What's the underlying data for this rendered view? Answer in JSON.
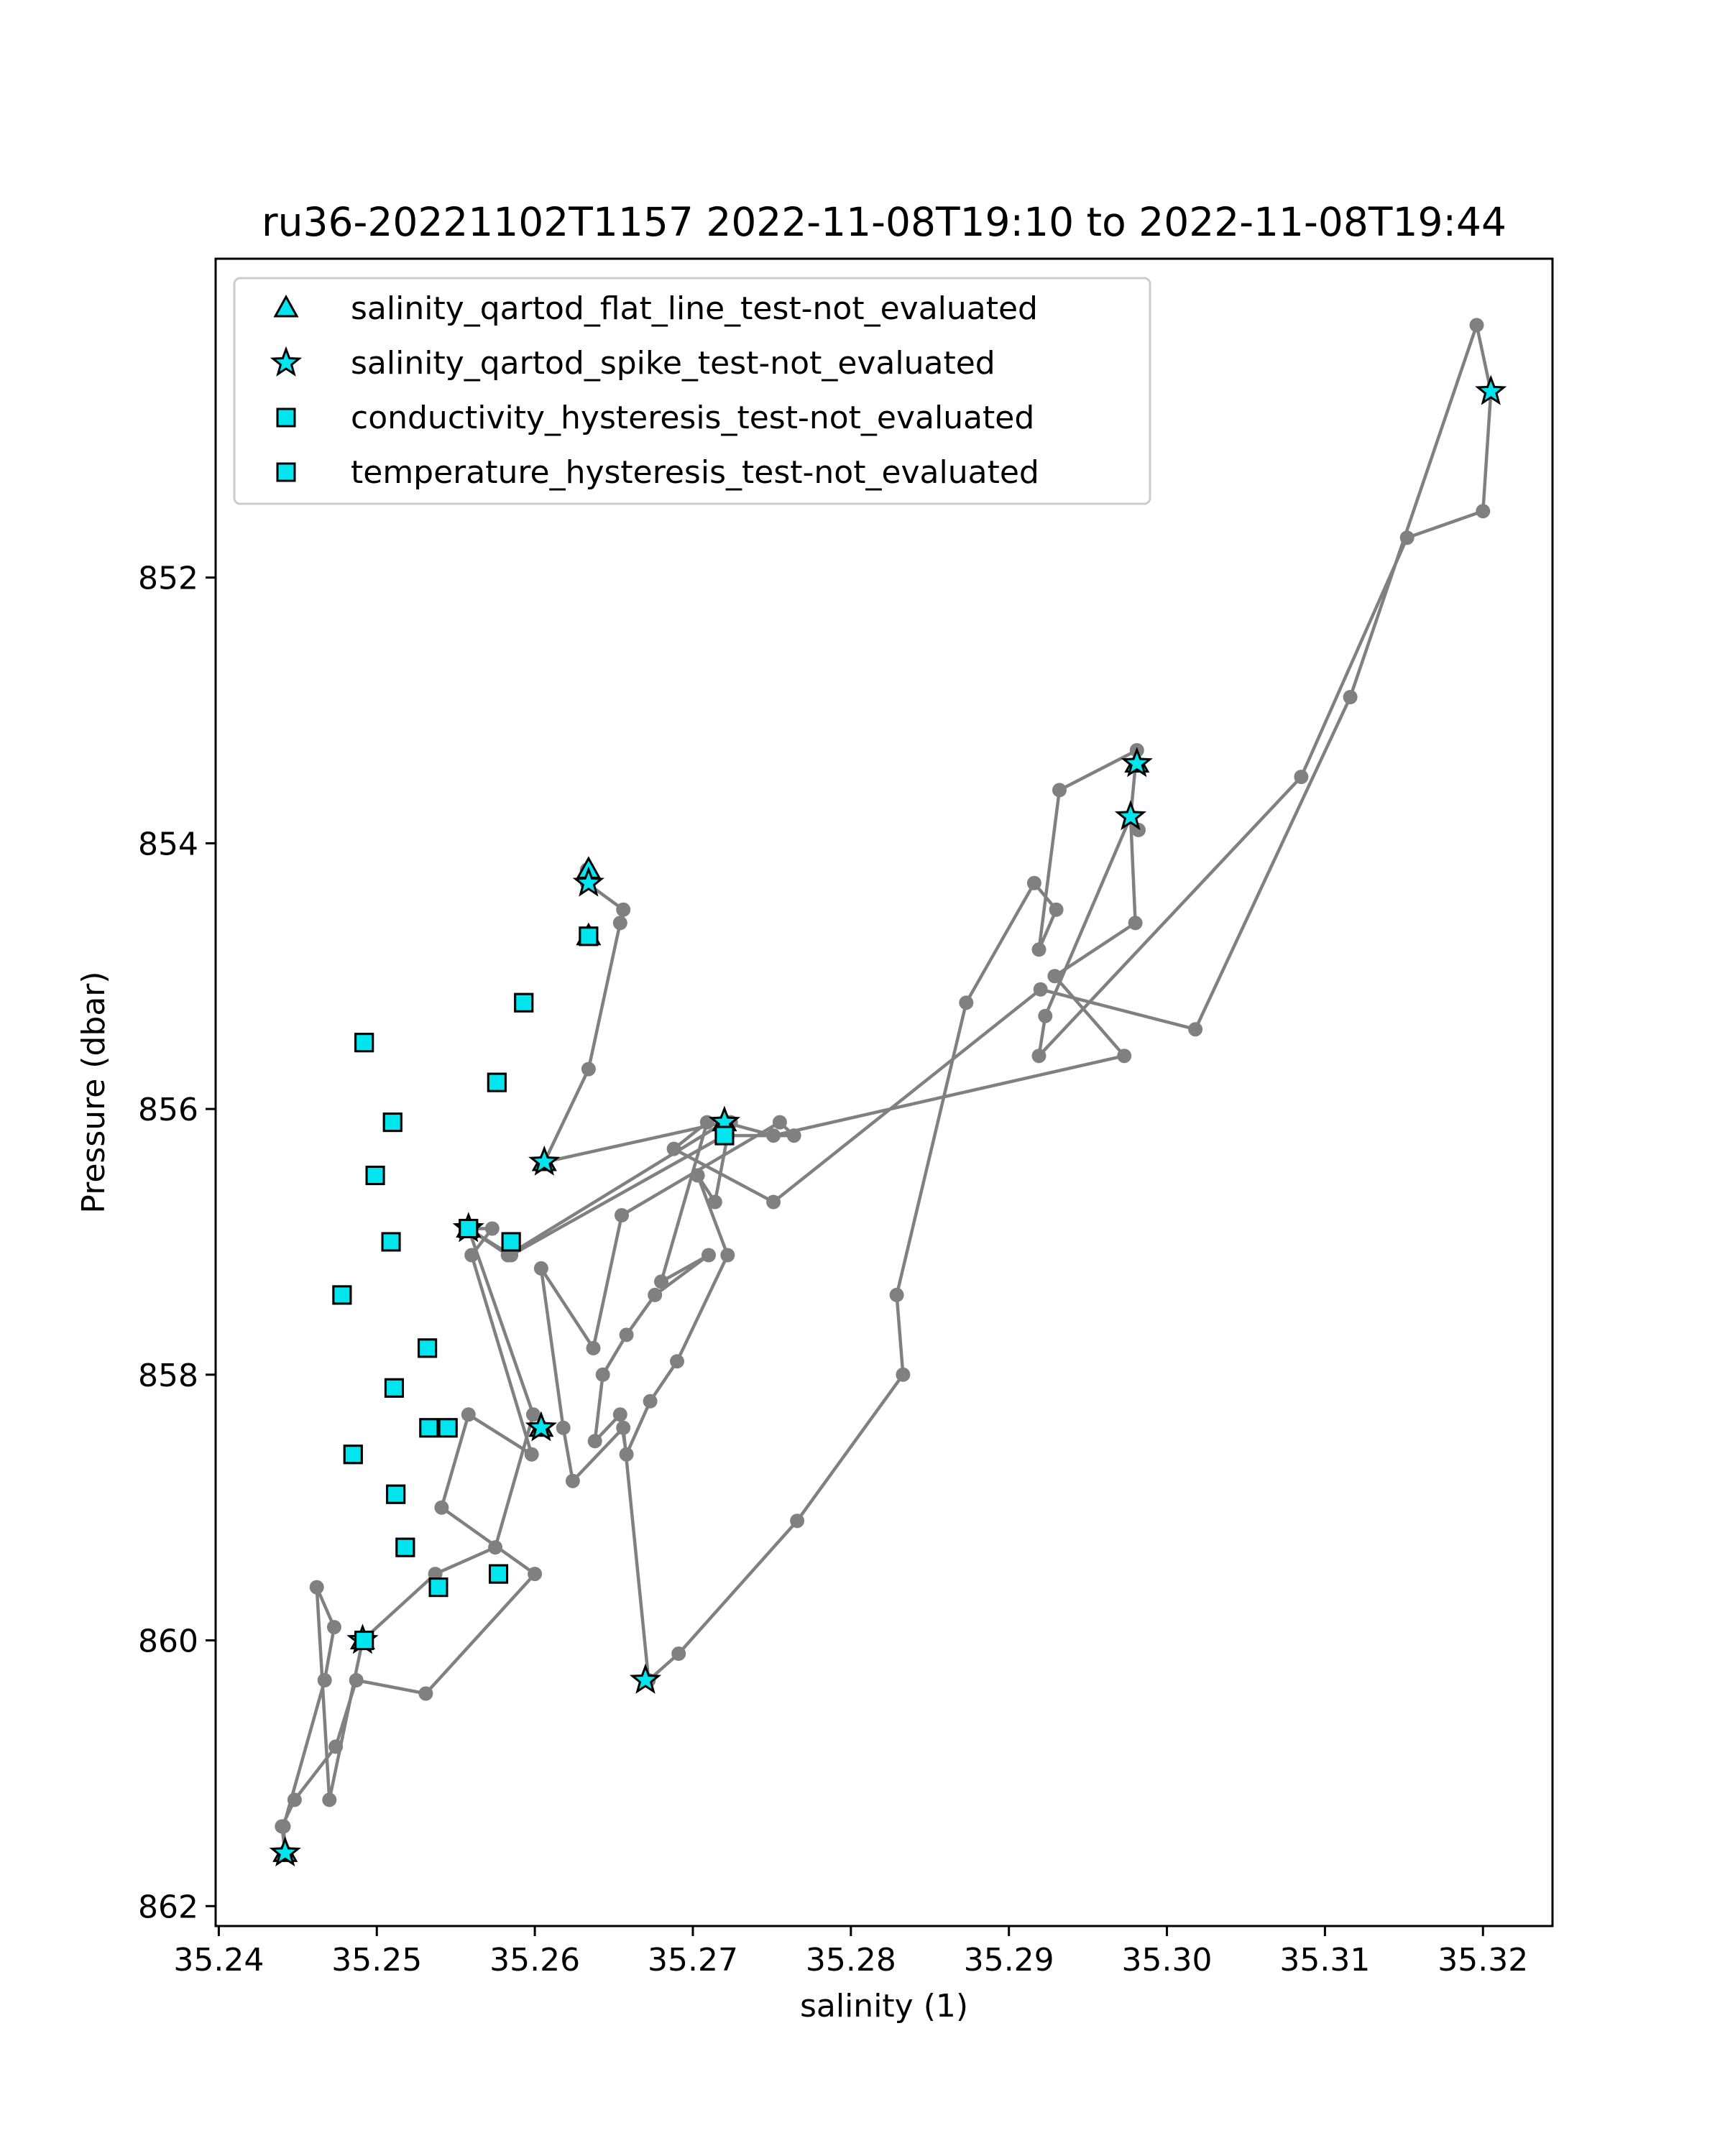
{
  "chart_data": {
    "type": "scatter",
    "title": "ru36-20221102T1157 2022-11-08T19:10 to 2022-11-08T19:44",
    "xlabel": "salinity (1)",
    "ylabel": "Pressure (dbar)",
    "xlim": [
      35.2398,
      35.3244
    ],
    "ylim": [
      862.15,
      849.6
    ],
    "y_inverted": true,
    "grid": false,
    "legend_position": "upper-left",
    "xticks": [
      35.24,
      35.25,
      35.26,
      35.27,
      35.28,
      35.29,
      35.3,
      35.31,
      35.32
    ],
    "xtick_labels": [
      "35.24",
      "35.25",
      "35.26",
      "35.27",
      "35.28",
      "35.29",
      "35.30",
      "35.31",
      "35.32"
    ],
    "yticks": [
      852,
      854,
      856,
      858,
      860,
      862
    ],
    "ytick_labels": [
      "852",
      "854",
      "856",
      "858",
      "860",
      "862"
    ],
    "colors": {
      "trace": "#808080",
      "flag_fill": "#00e5ee",
      "flag_edge": "#000000"
    },
    "series": [
      {
        "kind": "trace",
        "x": [
          35.2442,
          35.2441,
          35.2467,
          35.2473,
          35.2462,
          35.247,
          35.2491,
          35.2537,
          35.2575,
          35.2599,
          35.2558,
          35.2583,
          35.272,
          35.2751,
          35.2973,
          35.2929,
          35.298,
          35.2977,
          35.2923,
          35.2919,
          35.3085,
          35.3152,
          35.32,
          35.3205,
          35.3196,
          35.3116,
          35.3018,
          35.292,
          35.2751,
          35.2688,
          35.2709,
          35.268,
          35.271,
          35.2676,
          35.2658,
          35.2643,
          35.2638,
          35.2654,
          35.2658,
          35.2673,
          35.269,
          35.2722,
          35.2703,
          35.2714,
          35.2722,
          35.2724,
          35.272,
          35.2764,
          35.2755,
          35.2655,
          35.2637,
          35.2604,
          35.2618,
          35.2624,
          35.2656,
          35.2672,
          35.2691,
          35.2766,
          35.2833,
          35.2829,
          35.2873,
          35.2916,
          35.293,
          35.2919,
          35.2932,
          35.2981,
          35.2977,
          35.2982
        ],
        "y": [
          861.6,
          861.4,
          860.3,
          859.9,
          859.6,
          861.2,
          860.0,
          859.5,
          859.3,
          858.3,
          856.9,
          857.1,
          856.1,
          856.2,
          855.6,
          855.0,
          854.6,
          853.8,
          855.3,
          855.6,
          853.5,
          851.7,
          851.5,
          850.6,
          850.1,
          852.9,
          855.4,
          855.1,
          856.7,
          856.3,
          856.1,
          857.3,
          857.1,
          857.4,
          857.7,
          858.0,
          858.5,
          858.3,
          858.6,
          858.2,
          857.9,
          857.1,
          856.5,
          856.7,
          856.2,
          856.1,
          856.2,
          856.2,
          856.1,
          856.8,
          857.8,
          857.2,
          858.4,
          858.8,
          858.4,
          860.3,
          860.1,
          859.1,
          858.0,
          857.4,
          855.2,
          854.3,
          854.5,
          854.8,
          853.6,
          853.3,
          853.8,
          853.9
        ]
      },
      {
        "kind": "trace",
        "x": [
          35.2442,
          35.244,
          35.2448,
          35.2474,
          35.2487,
          35.2531,
          35.26,
          35.2541,
          35.2558,
          35.2598,
          35.256,
          35.2573,
          35.2558,
          35.2585,
          35.272,
          35.272,
          35.2606,
          35.2634,
          35.2654,
          35.2656,
          35.2633,
          35.2633
        ],
        "y": [
          861.6,
          861.4,
          861.2,
          860.8,
          860.3,
          860.4,
          859.5,
          859.0,
          858.3,
          858.6,
          857.1,
          856.9,
          856.9,
          857.1,
          856.2,
          856.1,
          856.4,
          855.7,
          854.6,
          854.5,
          854.3,
          854.2
        ]
      },
      {
        "kind": "flag",
        "name": "salinity_qartod_flat_line_test-not_evaluated",
        "marker": "triangle",
        "x": [
          35.2634,
          35.2634,
          35.272,
          35.2606,
          35.2558,
          35.2604,
          35.2491,
          35.2442,
          35.2981
        ],
        "y": [
          854.2,
          854.7,
          856.1,
          856.4,
          856.9,
          858.4,
          860.0,
          861.6,
          853.4
        ]
      },
      {
        "kind": "flag",
        "name": "salinity_qartod_spike_test-not_evaluated",
        "marker": "star",
        "x": [
          35.3205,
          35.2981,
          35.2977,
          35.2634,
          35.272,
          35.2606,
          35.2558,
          35.2604,
          35.2491,
          35.267,
          35.2442
        ],
        "y": [
          850.6,
          853.4,
          853.8,
          854.3,
          856.1,
          856.4,
          856.9,
          858.4,
          860.0,
          860.3,
          861.6
        ]
      },
      {
        "kind": "flag",
        "name": "conductivity_hysteresis_test-not_evaluated",
        "marker": "square",
        "x": [
          35.2634,
          35.2593,
          35.2492,
          35.2576,
          35.251,
          35.2499,
          35.2509,
          35.2478,
          35.2532,
          35.2511,
          35.2545,
          35.2533,
          35.2485,
          35.2512,
          35.2518,
          35.2539,
          35.2577,
          35.2492,
          35.272,
          35.2585,
          35.2558
        ],
        "y": [
          854.7,
          855.2,
          855.5,
          855.8,
          856.1,
          856.5,
          857.0,
          857.4,
          857.8,
          858.1,
          858.4,
          858.4,
          858.6,
          858.9,
          859.3,
          859.6,
          859.5,
          860.0,
          856.2,
          857.0,
          856.9
        ]
      },
      {
        "kind": "flag",
        "name": "temperature_hysteresis_test-not_evaluated",
        "marker": "square",
        "x": [
          35.2634,
          35.2593,
          35.2492,
          35.2576,
          35.251,
          35.2499,
          35.2509,
          35.2478,
          35.2532,
          35.2511,
          35.2545,
          35.2533,
          35.2485,
          35.2512,
          35.2518,
          35.2539,
          35.2577,
          35.2492,
          35.272,
          35.2585,
          35.2558
        ],
        "y": [
          854.7,
          855.2,
          855.5,
          855.8,
          856.1,
          856.5,
          857.0,
          857.4,
          857.8,
          858.1,
          858.4,
          858.4,
          858.6,
          858.9,
          859.3,
          859.6,
          859.5,
          860.0,
          856.2,
          857.0,
          856.9
        ]
      }
    ]
  }
}
